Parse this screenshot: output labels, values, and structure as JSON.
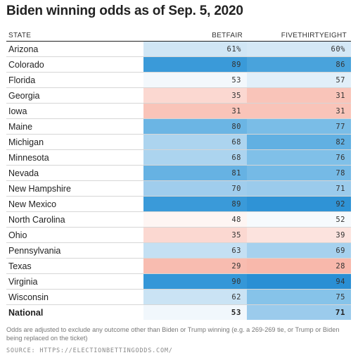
{
  "title": "Biden winning odds as of Sep. 5, 2020",
  "chart_data": {
    "type": "table",
    "columns": [
      "STATE",
      "BETFAIR",
      "FIVETHIRTYEIGHT"
    ],
    "rows": [
      {
        "state": "Arizona",
        "betfair": "61%",
        "fivethirtyeight": "60%",
        "betfair_color": "#d0e6f5",
        "fte_color": "#d4e8f6"
      },
      {
        "state": "Colorado",
        "betfair": "89",
        "fivethirtyeight": "86",
        "betfair_color": "#3a9ad9",
        "fte_color": "#49a3dc"
      },
      {
        "state": "Florida",
        "betfair": "53",
        "fivethirtyeight": "57",
        "betfair_color": "#f3f8fc",
        "fte_color": "#e1eff9"
      },
      {
        "state": "Georgia",
        "betfair": "35",
        "fivethirtyeight": "31",
        "betfair_color": "#fbd8d1",
        "fte_color": "#f9c4b9"
      },
      {
        "state": "Iowa",
        "betfair": "31",
        "fivethirtyeight": "31",
        "betfair_color": "#f9c4b9",
        "fte_color": "#f9c4b9"
      },
      {
        "state": "Maine",
        "betfair": "80",
        "fivethirtyeight": "77",
        "betfair_color": "#6bb5e4",
        "fte_color": "#7abde7"
      },
      {
        "state": "Michigan",
        "betfair": "68",
        "fivethirtyeight": "82",
        "betfair_color": "#acd4ef",
        "fte_color": "#61b0e2"
      },
      {
        "state": "Minnesota",
        "betfair": "68",
        "fivethirtyeight": "76",
        "betfair_color": "#acd4ef",
        "fte_color": "#80c0e8"
      },
      {
        "state": "Nevada",
        "betfair": "81",
        "fivethirtyeight": "78",
        "betfair_color": "#66b2e3",
        "fte_color": "#75bae6"
      },
      {
        "state": "New Hampshire",
        "betfair": "70",
        "fivethirtyeight": "71",
        "betfair_color": "#a0cded",
        "fte_color": "#9bcbec"
      },
      {
        "state": "New Mexico",
        "betfair": "89",
        "fivethirtyeight": "92",
        "betfair_color": "#3a9ad9",
        "fte_color": "#2f93d6"
      },
      {
        "state": "North Carolina",
        "betfair": "48",
        "fivethirtyeight": "52",
        "betfair_color": "#fef5f3",
        "fte_color": "#f6fafd"
      },
      {
        "state": "Ohio",
        "betfair": "35",
        "fivethirtyeight": "39",
        "betfair_color": "#fbd8d1",
        "fte_color": "#fce3de"
      },
      {
        "state": "Pennsylvania",
        "betfair": "63",
        "fivethirtyeight": "69",
        "betfair_color": "#c4e0f3",
        "fte_color": "#a6d1ee"
      },
      {
        "state": "Texas",
        "betfair": "29",
        "fivethirtyeight": "28",
        "betfair_color": "#f8bcb0",
        "fte_color": "#f8b8ab"
      },
      {
        "state": "Virginia",
        "betfair": "90",
        "fivethirtyeight": "94",
        "betfair_color": "#3597d8",
        "fte_color": "#2a8fd4"
      },
      {
        "state": "Wisconsin",
        "betfair": "62",
        "fivethirtyeight": "75",
        "betfair_color": "#cae3f4",
        "fte_color": "#86c3e9"
      }
    ],
    "national": {
      "state": "National",
      "betfair": "53",
      "fivethirtyeight": "71",
      "betfair_color": "#f1f7fc",
      "fte_color": "#9bcbec"
    }
  },
  "note": "Odds are adjusted to exclude any outcome other than Biden or Trump winning (e.g. a 269-269 tie, or Trump or Biden being replaced on the ticket)",
  "source": "SOURCE: HTTPS://ELECTIONBETTINGODDS.COM/"
}
